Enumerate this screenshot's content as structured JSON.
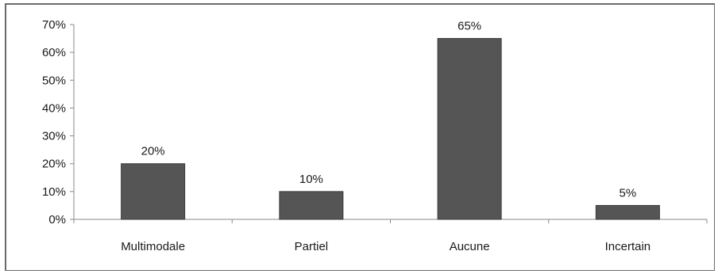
{
  "chart_data": {
    "type": "bar",
    "categories": [
      "Multimodale",
      "Partiel",
      "Aucune",
      "Incertain"
    ],
    "values": [
      20,
      10,
      65,
      5
    ],
    "data_labels": [
      "20%",
      "10%",
      "65%",
      "5%"
    ],
    "ylim": [
      0,
      70
    ],
    "yticks": [
      0,
      10,
      20,
      30,
      40,
      50,
      60,
      70
    ],
    "ytick_labels": [
      "0%",
      "10%",
      "20%",
      "30%",
      "40%",
      "50%",
      "60%",
      "70%"
    ],
    "grid": false,
    "legend": "none",
    "colors": {
      "bar": "#555555",
      "bar_edge": "#3a3a3a",
      "axis": "#888888",
      "text": "#1a1a1a"
    }
  }
}
